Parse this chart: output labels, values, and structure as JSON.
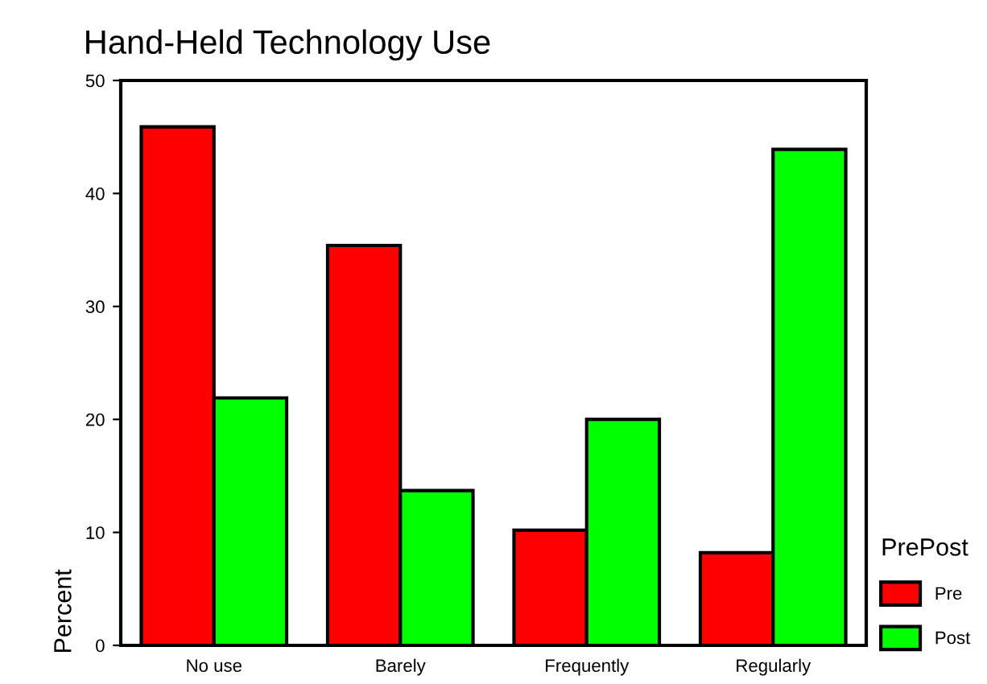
{
  "chart_data": {
    "type": "bar",
    "title": "Hand-Held Technology Use",
    "ylabel": "Percent",
    "legend_title": "PrePost",
    "categories": [
      "No use",
      "Barely",
      "Frequently",
      "Regularly"
    ],
    "series": [
      {
        "name": "Pre",
        "color": "#ff0000",
        "values": [
          45.9,
          35.4,
          10.2,
          8.2
        ]
      },
      {
        "name": "Post",
        "color": "#00ff00",
        "values": [
          21.9,
          13.7,
          20,
          43.9
        ]
      }
    ],
    "ylim": [
      0,
      50
    ],
    "yticks": [
      0,
      10,
      20,
      30,
      40,
      50
    ],
    "grid": false,
    "legend": "bottom right"
  }
}
